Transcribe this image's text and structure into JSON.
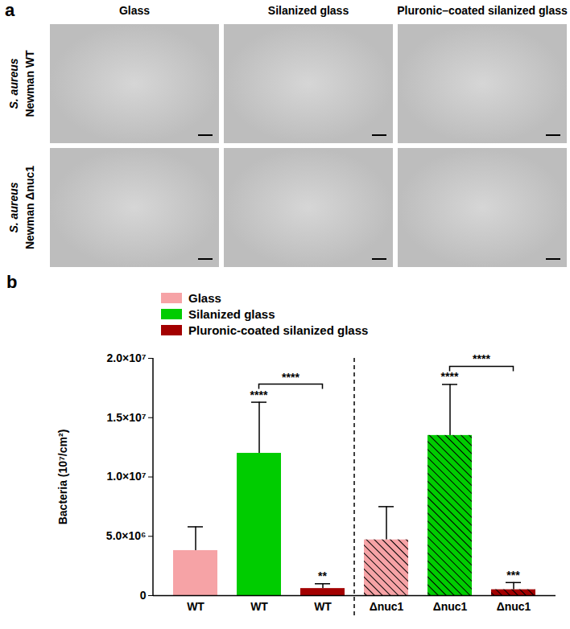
{
  "panel_a": {
    "label": "a",
    "columns": [
      "Glass",
      "Silanized glass",
      "Pluronic–coated silanized glass"
    ],
    "rows": [
      [
        "S. aureus",
        "Newman WT"
      ],
      [
        "S. aureus",
        "Newman Δnuc1"
      ]
    ]
  },
  "chart_data": {
    "type": "bar",
    "title": "b",
    "categories": [
      "WT",
      "WT",
      "WT",
      "Δnuc1",
      "Δnuc1",
      "Δnuc1"
    ],
    "series": [
      {
        "name": "Glass",
        "color": "#f6a3a6",
        "values": [
          3800000,
          null,
          null,
          4700000,
          null,
          null
        ],
        "errors": [
          2000000,
          null,
          null,
          2800000,
          null,
          null
        ]
      },
      {
        "name": "Silanized glass",
        "color": "#00cc00",
        "values": [
          null,
          12000000,
          null,
          null,
          13500000,
          null
        ],
        "errors": [
          null,
          4300000,
          null,
          null,
          4300000,
          null
        ]
      },
      {
        "name": "Pluronic-coated silanized glass",
        "color": "#a30000",
        "values": [
          null,
          null,
          600000,
          null,
          null,
          500000
        ],
        "errors": [
          null,
          null,
          400000,
          null,
          null,
          600000
        ]
      }
    ],
    "significance": [
      null,
      "****",
      "**",
      null,
      "****",
      "***"
    ],
    "comparisons": [
      {
        "from": 1,
        "to": 2,
        "label": "****"
      },
      {
        "from": 4,
        "to": 5,
        "label": "****"
      }
    ],
    "y_label": "Bacteria (10⁷/cm²)",
    "ylim": [
      0,
      20000000
    ],
    "yticks": [
      0,
      {
        "value": 5000000,
        "label": "5.0×10⁶"
      },
      {
        "value": 10000000,
        "label": "1.0×10⁷"
      },
      {
        "value": 15000000,
        "label": "1.5×10⁷"
      },
      {
        "value": 20000000,
        "label": "2.0×10⁷"
      }
    ],
    "legend": "top-left"
  }
}
